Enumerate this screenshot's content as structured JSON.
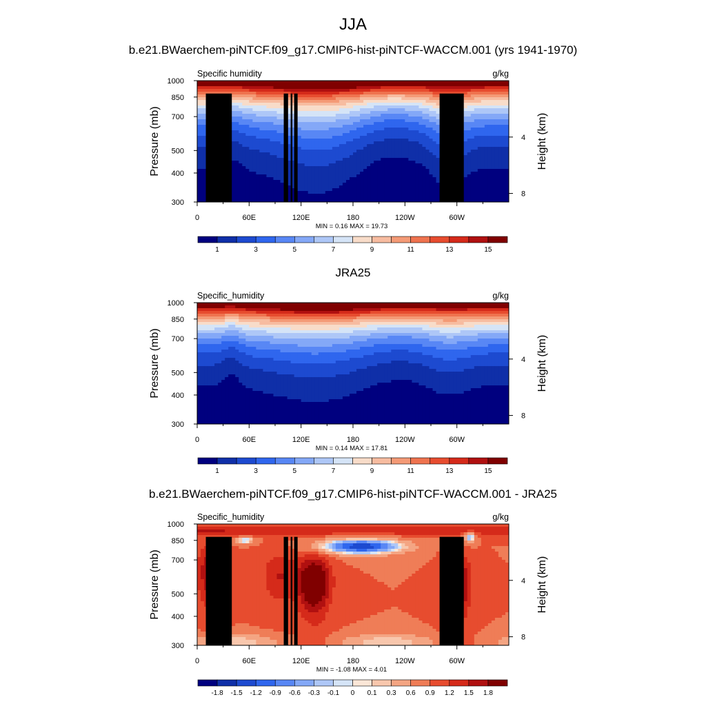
{
  "figure": {
    "season_title": "JJA",
    "pressure_axis_label": "Pressure (mb)",
    "height_axis_label": "Height (km)",
    "units": "g/kg"
  },
  "chart_data": [
    {
      "type": "heatmap",
      "title": "b.e21.BWaerchem-piNTCF.f09_g17.CMIP6-hist-piNTCF-WACCM.001 (yrs 1941-1970)",
      "left_label": "Specific humidity",
      "right_label": "g/kg",
      "xlabel": "",
      "ylabel": "Pressure (mb)",
      "right_axis_label": "Height (km)",
      "x_ticks": [
        "0",
        "60E",
        "120E",
        "180",
        "120W",
        "60W"
      ],
      "x_tick_values": [
        0,
        60,
        120,
        180,
        240,
        300
      ],
      "xlim": [
        0,
        360
      ],
      "y_ticks": [
        "300",
        "400",
        "500",
        "700",
        "850",
        "1000"
      ],
      "y_tick_values": [
        300,
        400,
        500,
        700,
        850,
        1000
      ],
      "ylim": [
        1000,
        300
      ],
      "y_scale": "log",
      "right_ticks": [
        "8",
        "4"
      ],
      "right_tick_values": [
        8,
        4
      ],
      "stats": "MIN =   0.16  MAX =  19.73",
      "colorbar_labels": [
        "1",
        "3",
        "5",
        "7",
        "9",
        "11",
        "13",
        "15"
      ],
      "colorbar_colors": [
        "#00007f",
        "#0f2fa8",
        "#1d4ad0",
        "#2f66ee",
        "#5887f5",
        "#84a8f7",
        "#aec7f7",
        "#d5e4f7",
        "#f8dcc9",
        "#f7bca0",
        "#f49a76",
        "#ef734f",
        "#e74c2f",
        "#d52a1a",
        "#b01010",
        "#800000"
      ],
      "field_variant": "model"
    },
    {
      "type": "heatmap",
      "title": "JRA25",
      "left_label": "Specific_humidity",
      "right_label": "g/kg",
      "xlabel": "",
      "ylabel": "Pressure (mb)",
      "right_axis_label": "Height (km)",
      "x_ticks": [
        "0",
        "60E",
        "120E",
        "180",
        "120W",
        "60W"
      ],
      "x_tick_values": [
        0,
        60,
        120,
        180,
        240,
        300
      ],
      "xlim": [
        0,
        360
      ],
      "y_ticks": [
        "300",
        "400",
        "500",
        "700",
        "850",
        "1000"
      ],
      "y_tick_values": [
        300,
        400,
        500,
        700,
        850,
        1000
      ],
      "ylim": [
        1000,
        300
      ],
      "y_scale": "log",
      "right_ticks": [
        "8",
        "4"
      ],
      "right_tick_values": [
        8,
        4
      ],
      "stats": "MIN =   0.14  MAX =  17.81",
      "colorbar_labels": [
        "1",
        "3",
        "5",
        "7",
        "9",
        "11",
        "13",
        "15"
      ],
      "colorbar_colors": [
        "#00007f",
        "#0f2fa8",
        "#1d4ad0",
        "#2f66ee",
        "#5887f5",
        "#84a8f7",
        "#aec7f7",
        "#d5e4f7",
        "#f8dcc9",
        "#f7bca0",
        "#f49a76",
        "#ef734f",
        "#e74c2f",
        "#d52a1a",
        "#b01010",
        "#800000"
      ],
      "field_variant": "obs"
    },
    {
      "type": "heatmap",
      "title": "b.e21.BWaerchem-piNTCF.f09_g17.CMIP6-hist-piNTCF-WACCM.001 - JRA25",
      "left_label": "Specific_humidity",
      "right_label": "g/kg",
      "xlabel": "",
      "ylabel": "Pressure (mb)",
      "right_axis_label": "Height (km)",
      "x_ticks": [
        "0",
        "60E",
        "120E",
        "180",
        "120W",
        "60W"
      ],
      "x_tick_values": [
        0,
        60,
        120,
        180,
        240,
        300
      ],
      "xlim": [
        0,
        360
      ],
      "y_ticks": [
        "300",
        "400",
        "500",
        "700",
        "850",
        "1000"
      ],
      "y_tick_values": [
        300,
        400,
        500,
        700,
        850,
        1000
      ],
      "ylim": [
        1000,
        300
      ],
      "y_scale": "log",
      "right_ticks": [
        "8",
        "4"
      ],
      "right_tick_values": [
        8,
        4
      ],
      "stats": "MIN =  -1.08  MAX =   4.01",
      "colorbar_labels": [
        "-1.8",
        "-1.5",
        "-1.2",
        "-0.9",
        "-0.6",
        "-0.3",
        "-0.1",
        "0",
        "0.1",
        "0.3",
        "0.6",
        "0.9",
        "1.2",
        "1.5",
        "1.8"
      ],
      "colorbar_colors": [
        "#00007f",
        "#0f2fa8",
        "#1d4ad0",
        "#2f66ee",
        "#5887f5",
        "#84a8f7",
        "#aec7f7",
        "#d5e4f7",
        "#fbe6d7",
        "#f8c7ad",
        "#f4a583",
        "#ef7d57",
        "#e74c2f",
        "#d52a1a",
        "#b01010",
        "#800000"
      ],
      "field_variant": "diff"
    }
  ]
}
